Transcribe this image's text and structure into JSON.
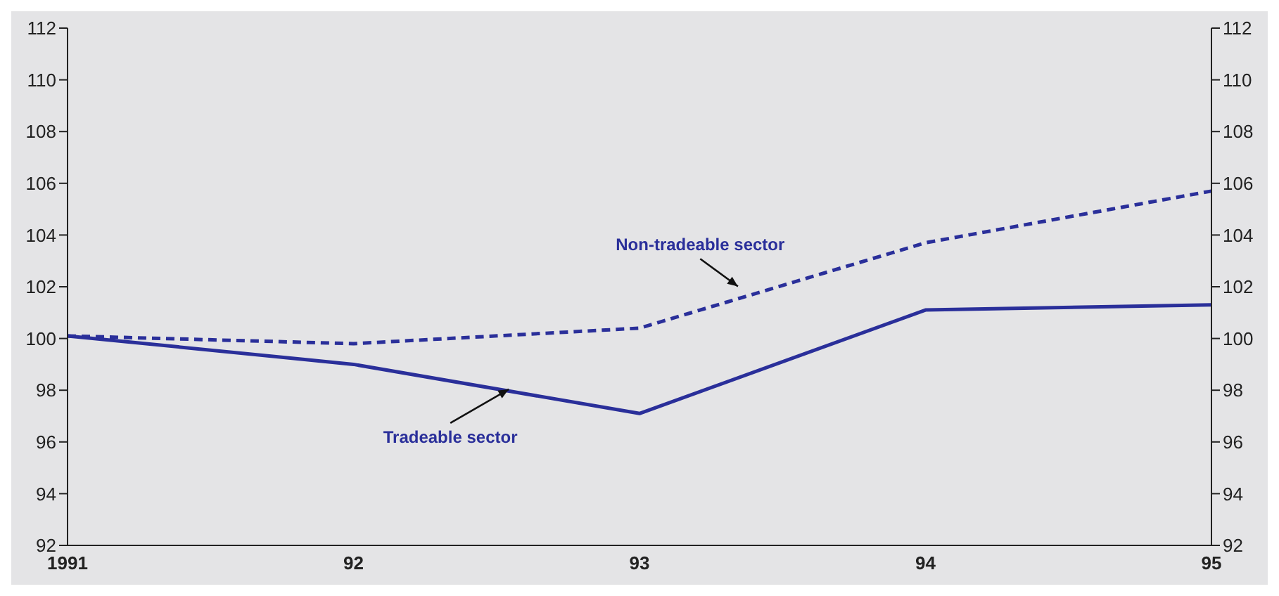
{
  "chart_data": {
    "type": "line",
    "categories": [
      "1991",
      "92",
      "93",
      "94",
      "95"
    ],
    "series": [
      {
        "name": "Tradeable sector",
        "color": "#2a2f9a",
        "values": [
          100.1,
          99.0,
          97.1,
          101.1,
          101.3
        ],
        "line_style": "solid"
      },
      {
        "name": "Non-tradeable sector",
        "color": "#2a2f9a",
        "values": [
          100.1,
          99.8,
          100.4,
          103.7,
          105.7
        ],
        "line_style": "dashed"
      }
    ],
    "ylim": [
      92,
      112
    ],
    "yticks": [
      92,
      94,
      96,
      98,
      100,
      102,
      104,
      106,
      108,
      110,
      112
    ],
    "y2lim": [
      92,
      112
    ],
    "y2ticks": [
      92,
      94,
      96,
      98,
      100,
      102,
      104,
      106,
      108,
      110,
      112
    ],
    "marker": "none"
  }
}
